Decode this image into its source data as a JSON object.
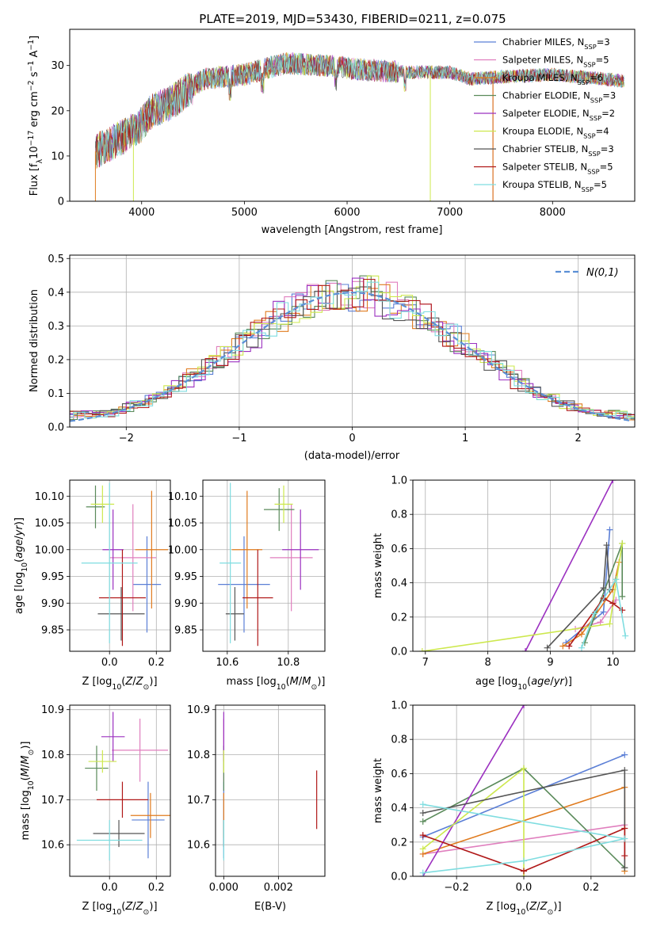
{
  "figure_title": "PLATE=2019, MJD=53430, FIBERID=0211, z=0.075",
  "models": [
    {
      "name": "Chabrier MILES, N",
      "sub": "SSP",
      "tail": "=3",
      "color": "#5b7fd6"
    },
    {
      "name": "Salpeter MILES, N",
      "sub": "SSP",
      "tail": "=5",
      "color": "#e07fbe"
    },
    {
      "name": "Kroupa MILES, N",
      "sub": "SSP",
      "tail": "=6",
      "color": "#e07b1e"
    },
    {
      "name": "Chabrier ELODIE, N",
      "sub": "SSP",
      "tail": "=3",
      "color": "#5a8a5a"
    },
    {
      "name": "Salpeter ELODIE, N",
      "sub": "SSP",
      "tail": "=2",
      "color": "#9b30c0"
    },
    {
      "name": "Kroupa ELODIE, N",
      "sub": "SSP",
      "tail": "=4",
      "color": "#cde84e"
    },
    {
      "name": "Chabrier STELIB, N",
      "sub": "SSP",
      "tail": "=3",
      "color": "#555555"
    },
    {
      "name": "Salpeter STELIB, N",
      "sub": "SSP",
      "tail": "=5",
      "color": "#b01818"
    },
    {
      "name": "Kroupa STELIB, N",
      "sub": "SSP",
      "tail": "=5",
      "color": "#7fdde0"
    }
  ],
  "chart_data": [
    {
      "id": "spectrum",
      "type": "line",
      "ylabel": "Flux [f",
      "xlabel": "wavelength [Angstrom, rest frame]",
      "xlim": [
        3300,
        8800
      ],
      "ylim": [
        0,
        38
      ],
      "xticks": [
        4000,
        5000,
        6000,
        7000,
        8000
      ],
      "yticks": [
        0,
        10,
        20,
        30
      ],
      "continuum": {
        "x": [
          3550,
          3800,
          4000,
          4100,
          4300,
          4600,
          5000,
          5400,
          5800,
          6200,
          6600,
          7000,
          7200,
          7500,
          8000,
          8500,
          8700
        ],
        "y": [
          11,
          14,
          17,
          20,
          22,
          27,
          28,
          30.5,
          30,
          29,
          28.5,
          28.5,
          27,
          27.5,
          28,
          27,
          26.5
        ]
      },
      "legend": "upper right"
    },
    {
      "id": "residuals",
      "type": "histogram",
      "xlabel": "(data-model)/error",
      "ylabel": "Normed distribution",
      "xlim": [
        -2.5,
        2.5
      ],
      "ylim": [
        0,
        0.51
      ],
      "xticks": [
        -2,
        -1,
        0,
        1,
        2
      ],
      "yticks": [
        0.0,
        0.1,
        0.2,
        0.3,
        0.4,
        0.5
      ],
      "bin_width": 0.1,
      "gaussian_label": "N(0,1)",
      "gaussian_color": "#5b8fd6",
      "legend": "upper right",
      "grid": true
    },
    {
      "id": "age_vs_Z",
      "type": "errorbar",
      "xlabel": "Z [log",
      "ylabel": "age  [log",
      "xlim": [
        -0.17,
        0.26
      ],
      "ylim": [
        9.81,
        10.13
      ],
      "xticks": [
        0.0,
        0.2
      ],
      "yticks": [
        9.85,
        9.9,
        9.95,
        10.0,
        10.05,
        10.1
      ],
      "points": [
        {
          "m": 0,
          "x": 0.16,
          "y": 9.935,
          "xe": 0.06,
          "ye": 0.09
        },
        {
          "m": 1,
          "x": 0.1,
          "y": 9.985,
          "xe": 0.1,
          "ye": 0.1
        },
        {
          "m": 2,
          "x": 0.18,
          "y": 10.0,
          "xe": 0.07,
          "ye": 0.11
        },
        {
          "m": 3,
          "x": -0.06,
          "y": 10.08,
          "xe": 0.04,
          "ye": 0.04
        },
        {
          "m": 4,
          "x": 0.015,
          "y": 10.0,
          "xe": 0.045,
          "ye": 0.075
        },
        {
          "m": 5,
          "x": -0.03,
          "y": 10.085,
          "xe": 0.05,
          "ye": 0.035
        },
        {
          "m": 6,
          "x": 0.05,
          "y": 9.88,
          "xe": 0.1,
          "ye": 0.05
        },
        {
          "m": 7,
          "x": 0.055,
          "y": 9.91,
          "xe": 0.1,
          "ye": 0.09
        },
        {
          "m": 8,
          "x": 0.0,
          "y": 9.975,
          "xe": 0.12,
          "ye": 0.15
        }
      ]
    },
    {
      "id": "age_vs_mass",
      "type": "errorbar",
      "xlabel": "mass [log",
      "ylabel": "",
      "xlim": [
        10.52,
        10.92
      ],
      "ylim": [
        9.81,
        10.13
      ],
      "xticks": [
        10.6,
        10.8
      ],
      "yticks": [
        9.85,
        9.9,
        9.95,
        10.0,
        10.05,
        10.1
      ],
      "points": [
        {
          "m": 0,
          "x": 10.655,
          "y": 9.935,
          "xe": 0.085,
          "ye": 0.09
        },
        {
          "m": 1,
          "x": 10.81,
          "y": 9.985,
          "xe": 0.07,
          "ye": 0.1
        },
        {
          "m": 2,
          "x": 10.665,
          "y": 10.0,
          "xe": 0.05,
          "ye": 0.11
        },
        {
          "m": 3,
          "x": 10.77,
          "y": 10.075,
          "xe": 0.05,
          "ye": 0.04
        },
        {
          "m": 4,
          "x": 10.84,
          "y": 10.0,
          "xe": 0.06,
          "ye": 0.075
        },
        {
          "m": 5,
          "x": 10.785,
          "y": 10.085,
          "xe": 0.03,
          "ye": 0.035
        },
        {
          "m": 6,
          "x": 10.625,
          "y": 9.88,
          "xe": 0.03,
          "ye": 0.05
        },
        {
          "m": 7,
          "x": 10.7,
          "y": 9.91,
          "xe": 0.05,
          "ye": 0.09
        },
        {
          "m": 8,
          "x": 10.61,
          "y": 9.975,
          "xe": 0.035,
          "ye": 0.15
        }
      ]
    },
    {
      "id": "weight_vs_age",
      "type": "line",
      "xlabel": "age  [log",
      "ylabel": "mass weight",
      "xlim": [
        6.8,
        10.35
      ],
      "ylim": [
        0,
        1.0
      ],
      "xticks": [
        7,
        8,
        9,
        10
      ],
      "yticks": [
        0.0,
        0.2,
        0.4,
        0.6,
        0.8,
        1.0
      ],
      "series": [
        {
          "m": 0,
          "x": [
            9.25,
            9.85,
            9.95
          ],
          "y": [
            0.05,
            0.23,
            0.71
          ]
        },
        {
          "m": 1,
          "x": [
            9.4,
            9.8,
            10.05
          ],
          "y": [
            0.13,
            0.17,
            0.3
          ]
        },
        {
          "m": 2,
          "x": [
            9.2,
            9.5,
            9.7,
            10.0,
            10.1
          ],
          "y": [
            0.03,
            0.1,
            0.2,
            0.36,
            0.52
          ]
        },
        {
          "m": 3,
          "x": [
            9.55,
            10.15,
            10.15
          ],
          "y": [
            0.05,
            0.63,
            0.32
          ]
        },
        {
          "m": 4,
          "x": [
            8.6,
            10.0
          ],
          "y": [
            0.0,
            1.0
          ]
        },
        {
          "m": 5,
          "x": [
            6.95,
            9.95,
            10.15
          ],
          "y": [
            0.0,
            0.16,
            0.63
          ]
        },
        {
          "m": 6,
          "x": [
            8.95,
            9.85,
            9.9,
            9.95
          ],
          "y": [
            0.02,
            0.37,
            0.62,
            0.36
          ]
        },
        {
          "m": 7,
          "x": [
            9.3,
            9.85,
            10.0,
            10.15
          ],
          "y": [
            0.03,
            0.31,
            0.28,
            0.24
          ]
        },
        {
          "m": 8,
          "x": [
            9.5,
            9.7,
            10.05,
            10.2
          ],
          "y": [
            0.02,
            0.22,
            0.42,
            0.09
          ]
        }
      ]
    },
    {
      "id": "mass_vs_Z",
      "type": "errorbar",
      "xlabel": "Z [log",
      "ylabel": "mass [log",
      "xlim": [
        -0.17,
        0.26
      ],
      "ylim": [
        10.53,
        10.91
      ],
      "xticks": [
        0.0,
        0.2
      ],
      "yticks": [
        10.6,
        10.7,
        10.8,
        10.9
      ],
      "points": [
        {
          "m": 0,
          "x": 0.165,
          "y": 10.655,
          "xe": 0.07,
          "ye": 0.085
        },
        {
          "m": 1,
          "x": 0.13,
          "y": 10.81,
          "xe": 0.12,
          "ye": 0.07
        },
        {
          "m": 2,
          "x": 0.175,
          "y": 10.665,
          "xe": 0.085,
          "ye": 0.05
        },
        {
          "m": 3,
          "x": -0.055,
          "y": 10.77,
          "xe": 0.05,
          "ye": 0.05
        },
        {
          "m": 4,
          "x": 0.015,
          "y": 10.84,
          "xe": 0.05,
          "ye": 0.055
        },
        {
          "m": 5,
          "x": -0.03,
          "y": 10.785,
          "xe": 0.06,
          "ye": 0.025
        },
        {
          "m": 6,
          "x": 0.04,
          "y": 10.625,
          "xe": 0.11,
          "ye": 0.03
        },
        {
          "m": 7,
          "x": 0.055,
          "y": 10.7,
          "xe": 0.11,
          "ye": 0.04
        },
        {
          "m": 8,
          "x": 0.0,
          "y": 10.61,
          "xe": 0.14,
          "ye": 0.045
        }
      ]
    },
    {
      "id": "mass_vs_ebv",
      "type": "errorbar",
      "xlabel": "E(B-V)",
      "ylabel": "",
      "xlim": [
        -0.0003,
        0.0037
      ],
      "ylim": [
        10.53,
        10.91
      ],
      "xticks": [
        0.0,
        0.002
      ],
      "xticklabels": [
        "0.000",
        "0.002"
      ],
      "yticks": [
        10.6,
        10.7,
        10.8,
        10.9
      ],
      "points": [
        {
          "m": 0,
          "x": 0.0,
          "y": 10.655,
          "xe": 0,
          "ye": 0.085
        },
        {
          "m": 1,
          "x": 0.0,
          "y": 10.81,
          "xe": 0,
          "ye": 0.07
        },
        {
          "m": 2,
          "x": 0.0,
          "y": 10.665,
          "xe": 0,
          "ye": 0.05
        },
        {
          "m": 3,
          "x": 0.0,
          "y": 10.77,
          "xe": 0,
          "ye": 0.05
        },
        {
          "m": 4,
          "x": 0.0,
          "y": 10.84,
          "xe": 0,
          "ye": 0.055
        },
        {
          "m": 5,
          "x": 0.0,
          "y": 10.785,
          "xe": 0,
          "ye": 0.025
        },
        {
          "m": 6,
          "x": 0.0,
          "y": 10.625,
          "xe": 0,
          "ye": 0.03
        },
        {
          "m": 7,
          "x": 0.0034,
          "y": 10.7,
          "xe": 0,
          "ye": 0.065
        },
        {
          "m": 8,
          "x": 0.0,
          "y": 10.61,
          "xe": 0,
          "ye": 0.045
        }
      ]
    },
    {
      "id": "weight_vs_Z",
      "type": "line",
      "xlabel": "Z [log",
      "ylabel": "mass weight",
      "xlim": [
        -0.33,
        0.33
      ],
      "ylim": [
        0,
        1.0
      ],
      "xticks": [
        -0.2,
        0.0,
        0.2
      ],
      "yticks": [
        0.0,
        0.2,
        0.4,
        0.6,
        0.8,
        1.0
      ],
      "series": [
        {
          "m": 0,
          "x": [
            -0.3,
            0.3
          ],
          "y": [
            0.23,
            0.71
          ]
        },
        {
          "m": 1,
          "x": [
            -0.3,
            0.3
          ],
          "y": [
            0.13,
            0.3
          ]
        },
        {
          "m": 2,
          "x": [
            -0.3,
            0.3,
            0.3
          ],
          "y": [
            0.13,
            0.52,
            0.03
          ]
        },
        {
          "m": 3,
          "x": [
            -0.3,
            0.0,
            0.3
          ],
          "y": [
            0.32,
            0.63,
            0.05
          ]
        },
        {
          "m": 4,
          "x": [
            -0.3,
            0.0
          ],
          "y": [
            0.0,
            1.0
          ]
        },
        {
          "m": 5,
          "x": [
            -0.3,
            0.0,
            0.0
          ],
          "y": [
            0.16,
            0.63,
            0.0
          ]
        },
        {
          "m": 6,
          "x": [
            -0.3,
            0.3,
            0.3
          ],
          "y": [
            0.37,
            0.62,
            0.05
          ]
        },
        {
          "m": 7,
          "x": [
            -0.3,
            0.0,
            0.3,
            0.3
          ],
          "y": [
            0.24,
            0.03,
            0.28,
            0.12
          ]
        },
        {
          "m": 8,
          "x": [
            -0.3,
            0.0,
            0.3,
            -0.3
          ],
          "y": [
            0.02,
            0.09,
            0.22,
            0.42
          ]
        }
      ]
    }
  ]
}
